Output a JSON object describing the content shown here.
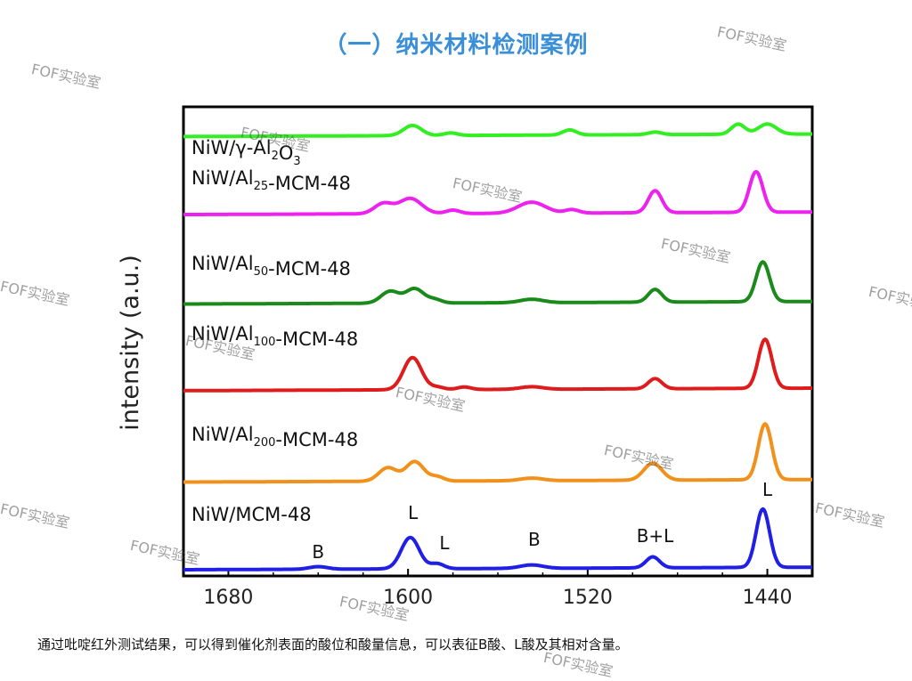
{
  "header": {
    "title": "（一）纳米材料检测案例"
  },
  "caption": "通过吡啶红外测试结果，可以得到催化剂表面的酸位和酸量信息，可以表征B酸、L酸及其相对含量。",
  "watermark": "FOF实验室",
  "chart_data": {
    "type": "line",
    "xlabel": "",
    "ylabel": "intensity (a.u.)",
    "xlim": [
      1700,
      1420
    ],
    "x_reversed": true,
    "x_ticks": [
      1680,
      1600,
      1520,
      1440
    ],
    "x_tick_labels": [
      "1680",
      "1600",
      "1520",
      "1440"
    ],
    "y_ticks_shown": false,
    "series": [
      {
        "name": "NiW/γ-Al2O3",
        "color": "#33ee22",
        "label_parts": [
          {
            "t": "NiW/γ-Al",
            "s": "n"
          },
          {
            "t": "2",
            "s": "sub"
          },
          {
            "t": "O",
            "s": "n"
          },
          {
            "t": "3",
            "s": "sub"
          }
        ],
        "baseline": 0.38,
        "slope": 0.3,
        "peaks": [
          [
            1598,
            1.2,
            4
          ],
          [
            1581,
            0.3,
            3
          ],
          [
            1528,
            0.6,
            3
          ],
          [
            1490,
            0.3,
            3
          ],
          [
            1453,
            1.2,
            3
          ],
          [
            1440,
            1.2,
            4
          ]
        ]
      },
      {
        "name": "NiW/Al25-MCM-48",
        "color": "#ee22ee",
        "label_parts": [
          {
            "t": "NiW/Al",
            "s": "n"
          },
          {
            "t": "25",
            "s": "sub"
          },
          {
            "t": "-MCM-48",
            "s": "n"
          }
        ],
        "baseline": 0.1,
        "slope": 0.3,
        "peaks": [
          [
            1611,
            1.2,
            4
          ],
          [
            1599,
            1.8,
            5
          ],
          [
            1580,
            0.4,
            3
          ],
          [
            1545,
            1.3,
            6
          ],
          [
            1527,
            0.4,
            3
          ],
          [
            1490,
            2.6,
            3
          ],
          [
            1445,
            4.8,
            3
          ]
        ]
      },
      {
        "name": "NiW/Al50-MCM-48",
        "color": "#1a8a1a",
        "label_parts": [
          {
            "t": "NiW/Al",
            "s": "n"
          },
          {
            "t": "50",
            "s": "sub"
          },
          {
            "t": "-MCM-48",
            "s": "n"
          }
        ],
        "baseline": 0.05,
        "slope": 0.3,
        "peaks": [
          [
            1608,
            1.4,
            4
          ],
          [
            1597,
            1.7,
            4
          ],
          [
            1588,
            0.4,
            3
          ],
          [
            1545,
            0.4,
            5
          ],
          [
            1490,
            1.5,
            3
          ],
          [
            1442,
            4.7,
            3
          ]
        ]
      },
      {
        "name": "NiW/Al100-MCM-48",
        "color": "#e01b1b",
        "label_parts": [
          {
            "t": "NiW/Al",
            "s": "n"
          },
          {
            "t": "100",
            "s": "sub"
          },
          {
            "t": "-MCM-48",
            "s": "n"
          }
        ],
        "baseline": 0.12,
        "slope": 0.3,
        "peaks": [
          [
            1598,
            3.8,
            4
          ],
          [
            1587,
            0.3,
            3
          ],
          [
            1575,
            0.3,
            3
          ],
          [
            1545,
            0.3,
            5
          ],
          [
            1490,
            1.2,
            3
          ],
          [
            1441,
            5.8,
            3
          ]
        ]
      },
      {
        "name": "NiW/Al200-MCM-48",
        "color": "#f2901c",
        "label_parts": [
          {
            "t": "NiW/Al",
            "s": "n"
          },
          {
            "t": "200",
            "s": "sub"
          },
          {
            "t": "-MCM-48",
            "s": "n"
          }
        ],
        "baseline": 0.05,
        "slope": 0.3,
        "peaks": [
          [
            1609,
            1.6,
            4
          ],
          [
            1597,
            2.3,
            4
          ],
          [
            1587,
            0.5,
            3
          ],
          [
            1545,
            0.3,
            5
          ],
          [
            1491,
            2.0,
            4
          ],
          [
            1441,
            6.6,
            3
          ]
        ]
      },
      {
        "name": "NiW/MCM-48",
        "color": "#1f1fe6",
        "label_parts": [
          {
            "t": "NiW/MCM-48",
            "s": "n"
          }
        ],
        "baseline": 0.0,
        "slope": 0.3,
        "peaks": [
          [
            1640,
            0.3,
            4
          ],
          [
            1599,
            3.7,
            4
          ],
          [
            1587,
            0.6,
            3
          ],
          [
            1545,
            0.4,
            5
          ],
          [
            1491,
            1.3,
            3
          ],
          [
            1442,
            6.9,
            3
          ]
        ]
      }
    ],
    "annotations": [
      {
        "text": "B",
        "x": 1640
      },
      {
        "text": "L",
        "x": 1599
      },
      {
        "text": "L",
        "x": 1587
      },
      {
        "text": "B",
        "x": 1545
      },
      {
        "text": "B+L",
        "x": 1490
      },
      {
        "text": "L",
        "x": 1440
      }
    ]
  }
}
